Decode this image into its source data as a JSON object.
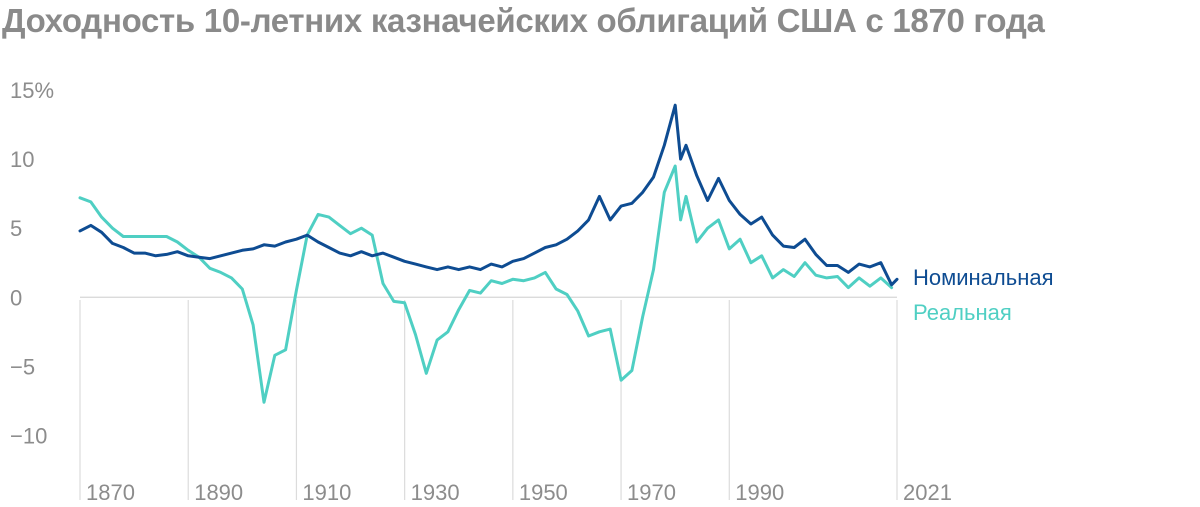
{
  "title": "Доходность 10-летних казначейских облигаций США с 1870 года",
  "chart_data": {
    "type": "line",
    "title": "Доходность 10-летних казначейских облигаций США с 1870 года",
    "xlim": [
      1870,
      2021
    ],
    "ylim": [
      -12.5,
      15
    ],
    "y_ticks": [
      "15%",
      "10",
      "5",
      "0",
      "−5",
      "−10"
    ],
    "y_tick_values": [
      15,
      10,
      5,
      0,
      -5,
      -10
    ],
    "x_ticks": [
      "1870",
      "1890",
      "1910",
      "1930",
      "1950",
      "1970",
      "1990",
      "2021"
    ],
    "x_tick_values": [
      1870,
      1890,
      1910,
      1930,
      1950,
      1970,
      1990,
      2021
    ],
    "grid": "vertical lines at x ticks, horizontal zero line",
    "legend_position": "right",
    "series": [
      {
        "name": "Номинальная",
        "color": "#0e4c92",
        "x": [
          1870,
          1872,
          1874,
          1876,
          1878,
          1880,
          1882,
          1884,
          1886,
          1888,
          1890,
          1892,
          1894,
          1896,
          1898,
          1900,
          1902,
          1904,
          1906,
          1908,
          1910,
          1912,
          1914,
          1916,
          1918,
          1920,
          1922,
          1924,
          1926,
          1928,
          1930,
          1932,
          1934,
          1936,
          1938,
          1940,
          1942,
          1944,
          1946,
          1948,
          1950,
          1952,
          1954,
          1956,
          1958,
          1960,
          1962,
          1964,
          1966,
          1968,
          1970,
          1972,
          1974,
          1976,
          1978,
          1980,
          1981,
          1982,
          1984,
          1986,
          1988,
          1990,
          1992,
          1994,
          1996,
          1998,
          2000,
          2002,
          2004,
          2006,
          2008,
          2010,
          2012,
          2014,
          2016,
          2018,
          2020,
          2021
        ],
        "values": [
          4.8,
          5.2,
          4.7,
          3.9,
          3.6,
          3.2,
          3.2,
          3.0,
          3.1,
          3.3,
          3.0,
          2.9,
          2.8,
          3.0,
          3.2,
          3.4,
          3.5,
          3.8,
          3.7,
          4.0,
          4.2,
          4.5,
          4.0,
          3.6,
          3.2,
          3.0,
          3.3,
          3.0,
          3.2,
          2.9,
          2.6,
          2.4,
          2.2,
          2.0,
          2.2,
          2.0,
          2.2,
          2.0,
          2.4,
          2.2,
          2.6,
          2.8,
          3.2,
          3.6,
          3.8,
          4.2,
          4.8,
          5.6,
          7.3,
          5.6,
          6.6,
          6.8,
          7.6,
          8.7,
          11.0,
          13.9,
          10.0,
          11.0,
          8.8,
          7.0,
          8.6,
          7.0,
          6.0,
          5.3,
          5.8,
          4.5,
          3.7,
          3.6,
          4.2,
          3.1,
          2.3,
          2.3,
          1.8,
          2.4,
          2.2,
          2.5,
          0.9,
          1.3
        ]
      },
      {
        "name": "Реальная",
        "color": "#4fcfc3",
        "x": [
          1870,
          1872,
          1874,
          1876,
          1878,
          1880,
          1882,
          1884,
          1886,
          1888,
          1890,
          1892,
          1894,
          1896,
          1898,
          1900,
          1902,
          1904,
          1906,
          1908,
          1910,
          1912,
          1914,
          1916,
          1918,
          1920,
          1922,
          1924,
          1926,
          1928,
          1930,
          1932,
          1934,
          1936,
          1938,
          1940,
          1942,
          1944,
          1946,
          1948,
          1950,
          1952,
          1954,
          1956,
          1958,
          1960,
          1962,
          1964,
          1966,
          1968,
          1970,
          1972,
          1974,
          1976,
          1978,
          1980,
          1981,
          1982,
          1984,
          1986,
          1988,
          1990,
          1992,
          1994,
          1996,
          1998,
          2000,
          2002,
          2004,
          2006,
          2008,
          2010,
          2012,
          2014,
          2016,
          2018,
          2020
        ],
        "values": [
          7.2,
          6.9,
          5.8,
          5.0,
          4.4,
          4.4,
          4.4,
          4.4,
          4.4,
          4.0,
          3.4,
          2.9,
          2.1,
          1.8,
          1.4,
          0.6,
          -2.0,
          -7.6,
          -4.2,
          -3.8,
          0.5,
          4.5,
          6.0,
          5.8,
          5.2,
          4.6,
          5.0,
          4.5,
          1.0,
          -0.3,
          -0.4,
          -2.7,
          -5.5,
          -3.1,
          -2.5,
          -0.9,
          0.5,
          0.3,
          1.2,
          1.0,
          1.3,
          1.2,
          1.4,
          1.8,
          0.6,
          0.2,
          -1.0,
          -2.8,
          -2.5,
          -2.3,
          -6.0,
          -5.3,
          -1.4,
          2.0,
          7.6,
          9.5,
          5.6,
          7.3,
          4.0,
          5.0,
          5.6,
          3.5,
          4.2,
          2.5,
          3.0,
          1.4,
          2.0,
          1.5,
          2.5,
          1.6,
          1.4,
          1.5,
          0.7,
          1.4,
          0.8,
          1.4,
          0.7
        ]
      }
    ]
  }
}
